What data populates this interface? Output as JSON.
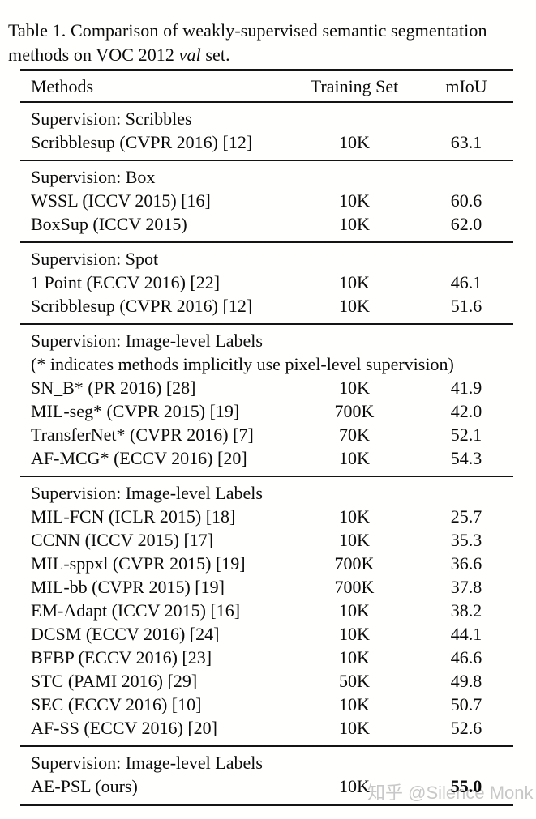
{
  "caption": {
    "line1": "Table 1. Comparison of weakly-supervised semantic segmentation",
    "line2_prefix": "methods on VOC 2012 ",
    "line2_italic": "val",
    "line2_suffix": " set."
  },
  "table": {
    "headers": [
      "Methods",
      "Training Set",
      "mIoU"
    ],
    "sections": [
      {
        "label_lines": [
          "Supervision: Scribbles"
        ],
        "rows": [
          {
            "method": "Scribblesup (CVPR 2016) [12]",
            "training": "10K",
            "miou": "63.1"
          }
        ]
      },
      {
        "label_lines": [
          "Supervision: Box"
        ],
        "rows": [
          {
            "method": "WSSL (ICCV 2015) [16]",
            "training": "10K",
            "miou": "60.6"
          },
          {
            "method": "BoxSup (ICCV 2015)",
            "training": "10K",
            "miou": "62.0"
          }
        ]
      },
      {
        "label_lines": [
          "Supervision: Spot"
        ],
        "rows": [
          {
            "method": "1 Point (ECCV 2016) [22]",
            "training": "10K",
            "miou": "46.1"
          },
          {
            "method": "Scribblesup (CVPR 2016) [12]",
            "training": "10K",
            "miou": "51.6"
          }
        ]
      },
      {
        "label_lines": [
          "Supervision: Image-level Labels",
          "(* indicates methods implicitly use pixel-level supervision)"
        ],
        "rows": [
          {
            "method": "SN_B* (PR 2016) [28]",
            "training": "10K",
            "miou": "41.9"
          },
          {
            "method": "MIL-seg* (CVPR 2015) [19]",
            "training": "700K",
            "miou": "42.0"
          },
          {
            "method": "TransferNet* (CVPR 2016) [7]",
            "training": "70K",
            "miou": "52.1"
          },
          {
            "method": "AF-MCG* (ECCV 2016) [20]",
            "training": "10K",
            "miou": "54.3"
          }
        ]
      },
      {
        "label_lines": [
          "Supervision: Image-level Labels"
        ],
        "rows": [
          {
            "method": "MIL-FCN (ICLR 2015) [18]",
            "training": "10K",
            "miou": "25.7"
          },
          {
            "method": "CCNN (ICCV 2015) [17]",
            "training": "10K",
            "miou": "35.3"
          },
          {
            "method": "MIL-sppxl (CVPR 2015) [19]",
            "training": "700K",
            "miou": "36.6"
          },
          {
            "method": "MIL-bb (CVPR 2015) [19]",
            "training": "700K",
            "miou": "37.8"
          },
          {
            "method": "EM-Adapt (ICCV 2015) [16]",
            "training": "10K",
            "miou": "38.2"
          },
          {
            "method": "DCSM (ECCV 2016) [24]",
            "training": "10K",
            "miou": "44.1"
          },
          {
            "method": "BFBP (ECCV 2016) [23]",
            "training": "10K",
            "miou": "46.6"
          },
          {
            "method": "STC (PAMI 2016) [29]",
            "training": "50K",
            "miou": "49.8"
          },
          {
            "method": "SEC (ECCV 2016) [10]",
            "training": "10K",
            "miou": "50.7"
          },
          {
            "method": "AF-SS (ECCV 2016) [20]",
            "training": "10K",
            "miou": "52.6"
          }
        ]
      },
      {
        "label_lines": [
          "Supervision: Image-level Labels"
        ],
        "rows": [
          {
            "method": "AE-PSL (ours)",
            "training": "10K",
            "miou": "55.0",
            "bold": true
          }
        ]
      }
    ]
  },
  "watermark": {
    "text": "知乎 @Silence Monk",
    "color": "#c8c8c8"
  }
}
